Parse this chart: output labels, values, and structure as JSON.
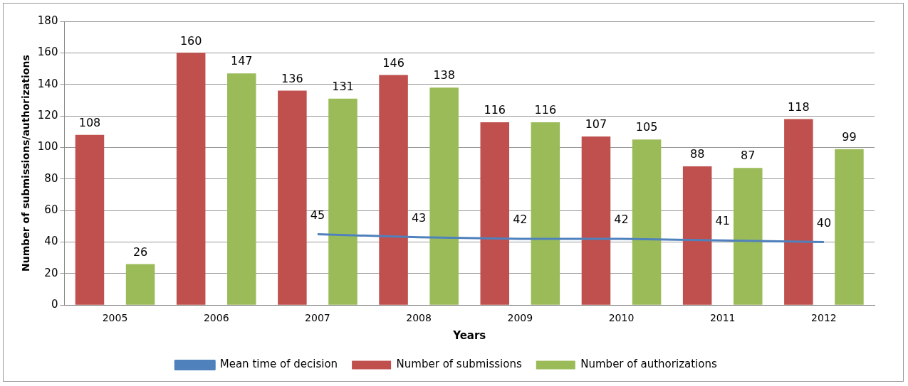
{
  "chart_data": {
    "type": "bar",
    "xlabel": "Years",
    "ylabel": "Number of submissions/authorizations",
    "categories": [
      "2005",
      "2006",
      "2007",
      "2008",
      "2009",
      "2010",
      "2011",
      "2012"
    ],
    "series": [
      {
        "name": "Number of submissions",
        "color": "#c0504d",
        "values": [
          108,
          160,
          136,
          146,
          116,
          107,
          88,
          118
        ]
      },
      {
        "name": "Number of authorizations",
        "color": "#9bbb59",
        "values": [
          26,
          147,
          131,
          138,
          116,
          105,
          87,
          99
        ]
      },
      {
        "name": "Mean time of decision",
        "type": "line",
        "color": "#4f81bd",
        "values": [
          null,
          null,
          45,
          43,
          42,
          42,
          41,
          40
        ]
      }
    ],
    "ylim": [
      0,
      180
    ],
    "yticks": [
      0,
      20,
      40,
      60,
      80,
      100,
      120,
      140,
      160,
      180
    ],
    "grid": "y",
    "legend": "bottom",
    "data_labels": true,
    "marker": "none"
  }
}
